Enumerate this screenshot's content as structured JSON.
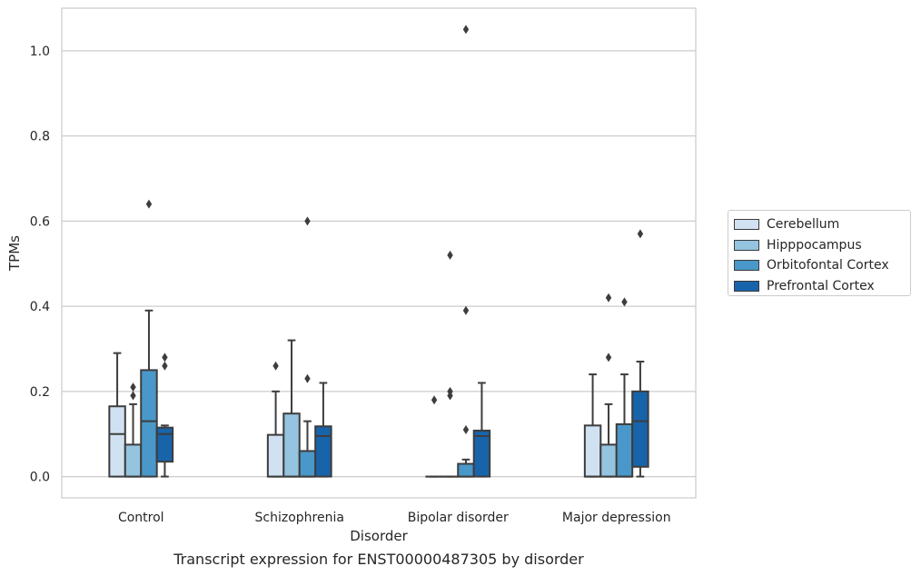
{
  "caption": "Transcript expression for ENST00000487305 by disorder",
  "chart_data": {
    "type": "box",
    "title": "",
    "xlabel": "Disorder",
    "ylabel": "TPMs",
    "ylim": [
      -0.05,
      1.1
    ],
    "yticks": [
      0.0,
      0.2,
      0.4,
      0.6,
      0.8,
      1.0
    ],
    "ytick_labels": [
      "0.0",
      "0.2",
      "0.4",
      "0.6",
      "0.8",
      "1.0"
    ],
    "grid": "y",
    "legend_position": "right",
    "categories": [
      "Control",
      "Schizophrenia",
      "Bipolar disorder",
      "Major depression"
    ],
    "series": [
      {
        "name": "Cerebellum",
        "color": "#d0e1f2",
        "boxes": [
          {
            "whislo": 0.0,
            "q1": 0.0,
            "med": 0.1,
            "q3": 0.165,
            "whishi": 0.29,
            "fliers": []
          },
          {
            "whislo": 0.0,
            "q1": 0.0,
            "med": 0.0,
            "q3": 0.098,
            "whishi": 0.2,
            "fliers": [
              0.26
            ]
          },
          {
            "whislo": 0.0,
            "q1": 0.0,
            "med": 0.0,
            "q3": 0.0,
            "whishi": 0.0,
            "fliers": [
              0.18
            ]
          },
          {
            "whislo": 0.0,
            "q1": 0.0,
            "med": 0.0,
            "q3": 0.12,
            "whishi": 0.24,
            "fliers": []
          }
        ]
      },
      {
        "name": "Hipppocampus",
        "color": "#94c4df",
        "boxes": [
          {
            "whislo": 0.0,
            "q1": 0.0,
            "med": 0.0,
            "q3": 0.075,
            "whishi": 0.17,
            "fliers": [
              0.19,
              0.21
            ]
          },
          {
            "whislo": 0.0,
            "q1": 0.0,
            "med": 0.0,
            "q3": 0.148,
            "whishi": 0.32,
            "fliers": []
          },
          {
            "whislo": 0.0,
            "q1": 0.0,
            "med": 0.0,
            "q3": 0.0,
            "whishi": 0.0,
            "fliers": [
              0.19,
              0.2,
              0.52
            ]
          },
          {
            "whislo": 0.0,
            "q1": 0.0,
            "med": 0.0,
            "q3": 0.075,
            "whishi": 0.17,
            "fliers": [
              0.28,
              0.42
            ]
          }
        ]
      },
      {
        "name": "Orbitofontal Cortex",
        "color": "#4a98c9",
        "boxes": [
          {
            "whislo": 0.0,
            "q1": 0.0,
            "med": 0.13,
            "q3": 0.25,
            "whishi": 0.39,
            "fliers": [
              0.64
            ]
          },
          {
            "whislo": 0.0,
            "q1": 0.0,
            "med": 0.0,
            "q3": 0.06,
            "whishi": 0.13,
            "fliers": [
              0.23,
              0.6
            ]
          },
          {
            "whislo": 0.0,
            "q1": 0.0,
            "med": 0.0,
            "q3": 0.03,
            "whishi": 0.04,
            "fliers": [
              0.11,
              0.39,
              1.05
            ]
          },
          {
            "whislo": 0.0,
            "q1": 0.0,
            "med": 0.0,
            "q3": 0.123,
            "whishi": 0.24,
            "fliers": [
              0.41
            ]
          }
        ]
      },
      {
        "name": "Prefrontal Cortex",
        "color": "#1764ab",
        "boxes": [
          {
            "whislo": 0.0,
            "q1": 0.035,
            "med": 0.1,
            "q3": 0.115,
            "whishi": 0.12,
            "fliers": [
              0.26,
              0.28
            ]
          },
          {
            "whislo": 0.0,
            "q1": 0.0,
            "med": 0.095,
            "q3": 0.118,
            "whishi": 0.22,
            "fliers": []
          },
          {
            "whislo": 0.0,
            "q1": 0.0,
            "med": 0.095,
            "q3": 0.108,
            "whishi": 0.22,
            "fliers": []
          },
          {
            "whislo": 0.0,
            "q1": 0.023,
            "med": 0.13,
            "q3": 0.2,
            "whishi": 0.27,
            "fliers": [
              0.57
            ]
          }
        ]
      }
    ]
  }
}
